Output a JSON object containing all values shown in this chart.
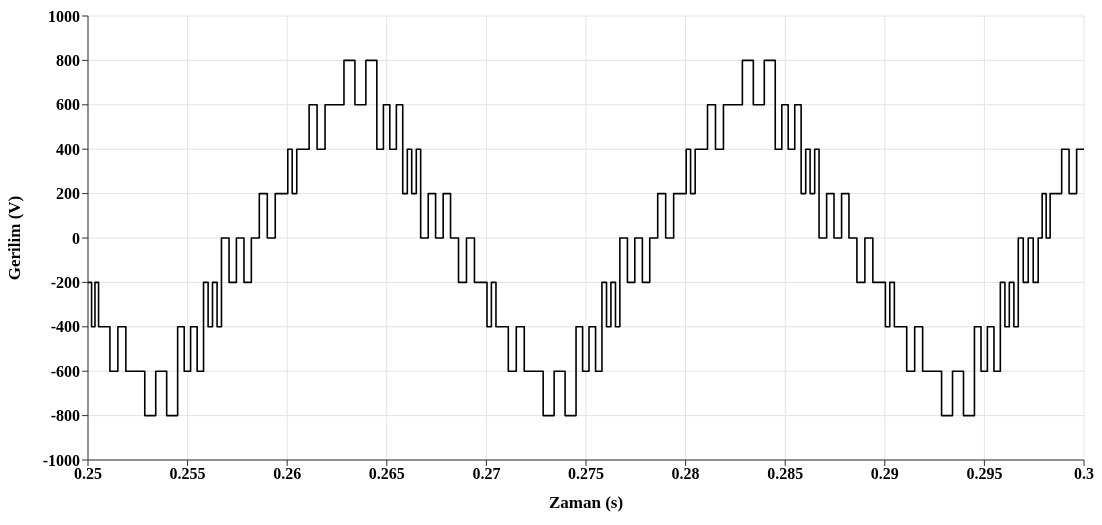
{
  "chart_data": {
    "type": "step",
    "xlabel": "Zaman (s)",
    "ylabel": "Gerilim (V)",
    "xlim": [
      0.25,
      0.3
    ],
    "xticks": [
      0.25,
      0.255,
      0.26,
      0.265,
      0.27,
      0.275,
      0.28,
      0.285,
      0.29,
      0.295,
      0.3
    ],
    "ylim": [
      -1000,
      1000
    ],
    "yticks": [
      -1000,
      -800,
      -600,
      -400,
      -200,
      0,
      200,
      400,
      600,
      800,
      1000
    ],
    "grid": true,
    "marker": "none",
    "line_style": "solid",
    "series": [
      {
        "color": "#000000",
        "x": [
          0.25,
          0.25018,
          0.25035,
          0.25053,
          0.2507,
          0.2511,
          0.2515,
          0.2519,
          0.2523,
          0.25285,
          0.2534,
          0.25395,
          0.2545,
          0.25483,
          0.25515,
          0.25548,
          0.2558,
          0.25603,
          0.25625,
          0.25648,
          0.2567,
          0.25708,
          0.25745,
          0.25783,
          0.2582,
          0.2586,
          0.259,
          0.2594,
          0.2598,
          0.26003,
          0.26025,
          0.26048,
          0.2607,
          0.2611,
          0.2615,
          0.2619,
          0.2623,
          0.26285,
          0.2634,
          0.26395,
          0.2645,
          0.26483,
          0.26515,
          0.26548,
          0.2658,
          0.26603,
          0.26625,
          0.26648,
          0.2667,
          0.26708,
          0.26745,
          0.26783,
          0.2682,
          0.2686,
          0.269,
          0.2694,
          0.2698,
          0.27003,
          0.27025,
          0.27048,
          0.2707,
          0.2711,
          0.2715,
          0.2719,
          0.2723,
          0.27285,
          0.2734,
          0.27395,
          0.2745,
          0.27483,
          0.27515,
          0.27548,
          0.2758,
          0.27603,
          0.27625,
          0.27648,
          0.2767,
          0.27708,
          0.27745,
          0.27783,
          0.2782,
          0.2786,
          0.279,
          0.2794,
          0.2798,
          0.28003,
          0.28025,
          0.28048,
          0.2807,
          0.2811,
          0.2815,
          0.2819,
          0.2823,
          0.28285,
          0.2834,
          0.28395,
          0.2845,
          0.28483,
          0.28515,
          0.28548,
          0.2858,
          0.28603,
          0.28625,
          0.28648,
          0.2867,
          0.28708,
          0.28745,
          0.28783,
          0.2882,
          0.2886,
          0.289,
          0.2894,
          0.2898,
          0.29003,
          0.29025,
          0.29048,
          0.2907,
          0.2911,
          0.2915,
          0.2919,
          0.2923,
          0.29285,
          0.2934,
          0.29395,
          0.2945,
          0.29483,
          0.29515,
          0.29548,
          0.2958,
          0.29603,
          0.29625,
          0.29648,
          0.2967,
          0.29695,
          0.2972,
          0.29745,
          0.2977,
          0.2979,
          0.2981,
          0.2983,
          0.2985,
          0.29888,
          0.29925,
          0.29963,
          0.3
        ],
        "values": [
          -200,
          -400,
          -200,
          -400,
          -400,
          -600,
          -400,
          -600,
          -600,
          -800,
          -600,
          -800,
          -400,
          -600,
          -400,
          -600,
          -200,
          -400,
          -200,
          -400,
          0,
          -200,
          0,
          -200,
          0,
          200,
          0,
          200,
          200,
          400,
          200,
          400,
          400,
          600,
          400,
          600,
          600,
          800,
          600,
          800,
          400,
          600,
          400,
          600,
          200,
          400,
          200,
          400,
          0,
          200,
          0,
          200,
          0,
          -200,
          0,
          -200,
          -200,
          -400,
          -200,
          -400,
          -400,
          -600,
          -400,
          -600,
          -600,
          -800,
          -600,
          -800,
          -400,
          -600,
          -400,
          -600,
          -200,
          -400,
          -200,
          -400,
          0,
          -200,
          0,
          -200,
          0,
          200,
          0,
          200,
          200,
          400,
          200,
          400,
          400,
          600,
          400,
          600,
          600,
          800,
          600,
          800,
          400,
          600,
          400,
          600,
          200,
          400,
          200,
          400,
          0,
          200,
          0,
          200,
          0,
          -200,
          0,
          -200,
          -200,
          -400,
          -200,
          -400,
          -400,
          -600,
          -400,
          -600,
          -600,
          -800,
          -600,
          -800,
          -400,
          -600,
          -400,
          -600,
          -200,
          -400,
          -200,
          -400,
          0,
          -200,
          0,
          -200,
          0,
          200,
          0,
          200,
          200,
          400,
          200,
          400,
          400
        ]
      }
    ]
  }
}
